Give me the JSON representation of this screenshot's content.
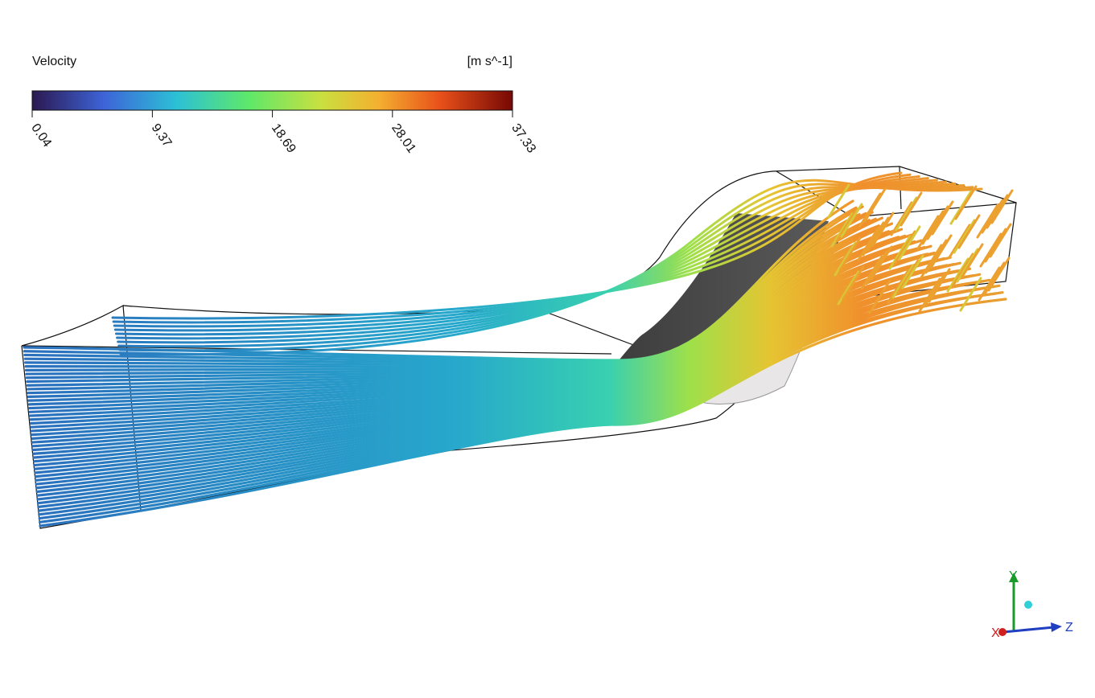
{
  "legend": {
    "title": "Velocity",
    "unit": "[m s^-1]",
    "ticks": [
      0.04,
      9.37,
      18.69,
      28.01,
      37.33
    ]
  },
  "axes_triad": {
    "x": "X",
    "y": "Y",
    "z": "Z"
  }
}
